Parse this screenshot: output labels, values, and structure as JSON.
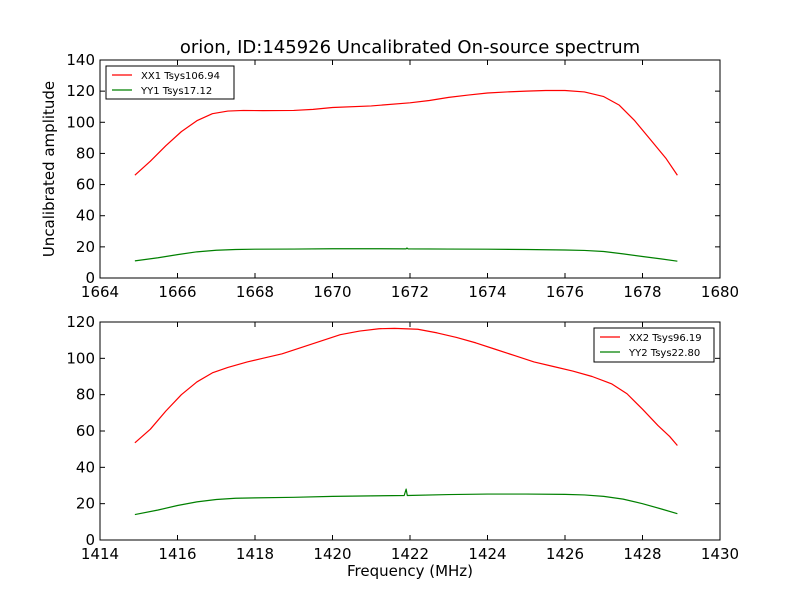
{
  "title": "orion, ID:145926 Uncalibrated On-source spectrum",
  "chart_data": [
    {
      "type": "line",
      "ylabel": "Uncalibrated amplitude",
      "xlabel": "",
      "xlim": [
        1664,
        1680
      ],
      "ylim": [
        0,
        140
      ],
      "xticks": [
        1664,
        1666,
        1668,
        1670,
        1672,
        1674,
        1676,
        1678,
        1680
      ],
      "yticks": [
        0,
        20,
        40,
        60,
        80,
        100,
        120,
        140
      ],
      "legend_position": "top-left",
      "series": [
        {
          "name": "XX1 Tsys106.94",
          "color": "#ff0000",
          "points": [
            [
              1664.9,
              66
            ],
            [
              1665.3,
              75
            ],
            [
              1665.7,
              85
            ],
            [
              1666.1,
              94
            ],
            [
              1666.5,
              101
            ],
            [
              1666.9,
              105.5
            ],
            [
              1667.3,
              107.2
            ],
            [
              1667.7,
              107.6
            ],
            [
              1668.2,
              107.5
            ],
            [
              1669,
              107.6
            ],
            [
              1669.5,
              108.3
            ],
            [
              1670,
              109.5
            ],
            [
              1671,
              110.5
            ],
            [
              1672,
              112.5
            ],
            [
              1672.5,
              114
            ],
            [
              1673,
              116
            ],
            [
              1673.5,
              117.5
            ],
            [
              1674,
              118.8
            ],
            [
              1674.5,
              119.5
            ],
            [
              1675,
              120
            ],
            [
              1675.5,
              120.4
            ],
            [
              1676,
              120.4
            ],
            [
              1676.5,
              119.5
            ],
            [
              1677,
              116.5
            ],
            [
              1677.4,
              111
            ],
            [
              1677.8,
              101
            ],
            [
              1678.2,
              89
            ],
            [
              1678.6,
              77
            ],
            [
              1678.9,
              66
            ]
          ]
        },
        {
          "name": "YY1 Tsys17.12",
          "color": "#008000",
          "points": [
            [
              1664.9,
              11
            ],
            [
              1665.5,
              13
            ],
            [
              1666,
              15
            ],
            [
              1666.5,
              16.8
            ],
            [
              1667,
              17.8
            ],
            [
              1667.5,
              18.3
            ],
            [
              1668,
              18.5
            ],
            [
              1669,
              18.6
            ],
            [
              1670,
              18.8
            ],
            [
              1671,
              18.8
            ],
            [
              1671.9,
              18.7
            ],
            [
              1671.92,
              19.3
            ],
            [
              1671.95,
              18.7
            ],
            [
              1673,
              18.6
            ],
            [
              1674,
              18.5
            ],
            [
              1675,
              18.3
            ],
            [
              1676,
              18
            ],
            [
              1676.5,
              17.7
            ],
            [
              1677,
              17
            ],
            [
              1677.5,
              15.5
            ],
            [
              1678,
              13.8
            ],
            [
              1678.5,
              12.2
            ],
            [
              1678.9,
              10.8
            ]
          ]
        }
      ]
    },
    {
      "type": "line",
      "ylabel": "",
      "xlabel": "Frequency (MHz)",
      "xlim": [
        1414,
        1430
      ],
      "ylim": [
        0,
        120
      ],
      "xticks": [
        1414,
        1416,
        1418,
        1420,
        1422,
        1424,
        1426,
        1428,
        1430
      ],
      "yticks": [
        0,
        20,
        40,
        60,
        80,
        100,
        120
      ],
      "legend_position": "top-right",
      "series": [
        {
          "name": "XX2 Tsys96.19",
          "color": "#ff0000",
          "points": [
            [
              1414.9,
              53.5
            ],
            [
              1415.3,
              61
            ],
            [
              1415.7,
              71
            ],
            [
              1416.1,
              80
            ],
            [
              1416.5,
              87
            ],
            [
              1416.9,
              92
            ],
            [
              1417.3,
              95
            ],
            [
              1417.8,
              98
            ],
            [
              1418.2,
              100
            ],
            [
              1418.7,
              102.5
            ],
            [
              1419.2,
              106
            ],
            [
              1419.7,
              109.5
            ],
            [
              1420.2,
              113
            ],
            [
              1420.7,
              115
            ],
            [
              1421.2,
              116.3
            ],
            [
              1421.6,
              116.5
            ],
            [
              1422.2,
              116
            ],
            [
              1422.7,
              114
            ],
            [
              1423.2,
              111.5
            ],
            [
              1423.7,
              108.5
            ],
            [
              1424.2,
              105
            ],
            [
              1424.7,
              101.5
            ],
            [
              1425.2,
              98
            ],
            [
              1425.7,
              95.5
            ],
            [
              1426.2,
              93
            ],
            [
              1426.7,
              90
            ],
            [
              1427.2,
              86
            ],
            [
              1427.6,
              80.5
            ],
            [
              1428,
              72
            ],
            [
              1428.4,
              63
            ],
            [
              1428.7,
              57
            ],
            [
              1428.9,
              52
            ]
          ]
        },
        {
          "name": "YY2 Tsys22.80",
          "color": "#008000",
          "points": [
            [
              1414.9,
              14
            ],
            [
              1415.5,
              16.5
            ],
            [
              1416,
              19
            ],
            [
              1416.5,
              21
            ],
            [
              1417,
              22.3
            ],
            [
              1417.5,
              23
            ],
            [
              1418,
              23.2
            ],
            [
              1419,
              23.5
            ],
            [
              1420,
              24
            ],
            [
              1421,
              24.3
            ],
            [
              1421.85,
              24.5
            ],
            [
              1421.9,
              28
            ],
            [
              1421.93,
              24.5
            ],
            [
              1423,
              25
            ],
            [
              1424,
              25.3
            ],
            [
              1425,
              25.3
            ],
            [
              1426,
              25.1
            ],
            [
              1426.5,
              24.8
            ],
            [
              1427,
              24
            ],
            [
              1427.5,
              22.5
            ],
            [
              1428,
              20
            ],
            [
              1428.5,
              17
            ],
            [
              1428.9,
              14.5
            ]
          ]
        }
      ]
    }
  ]
}
